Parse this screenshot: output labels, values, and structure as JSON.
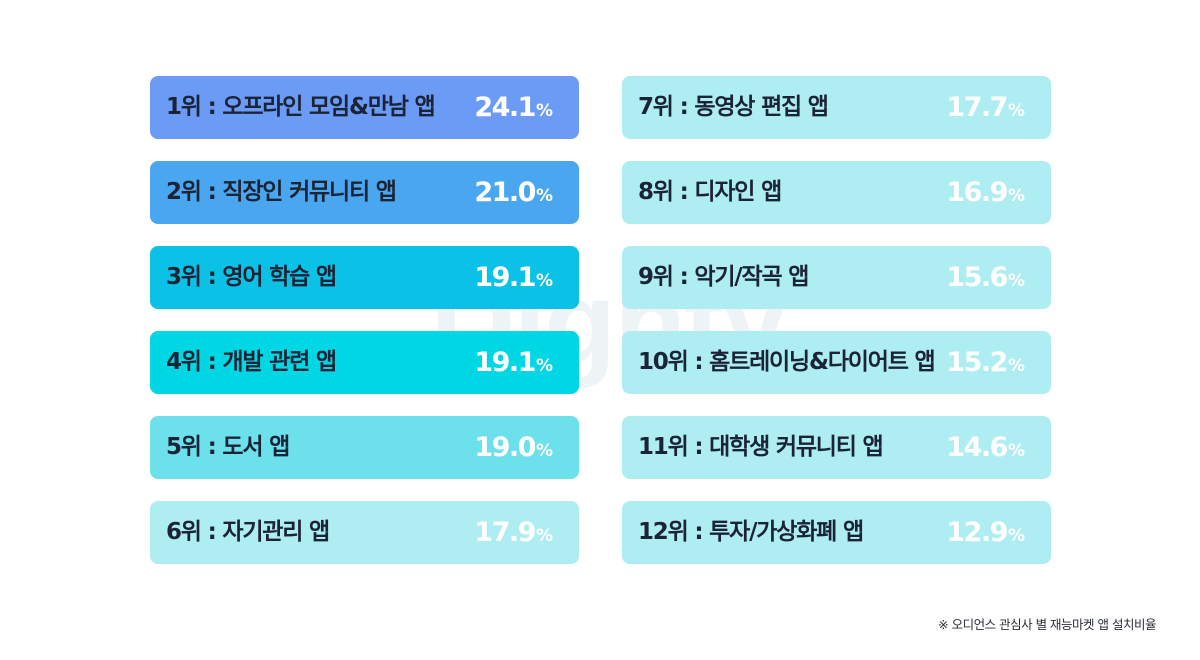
{
  "watermark": "Dighty",
  "footnote": "※ 오디언스 관심사 별 재능마켓 앱 설치비율",
  "chart_data": {
    "type": "table",
    "value_unit": "%",
    "items": [
      {
        "rank": "1위",
        "label": "1위 : 오프라인 모임&만남 앱",
        "value": "24.1",
        "color": "#6b9bf5"
      },
      {
        "rank": "2위",
        "label": "2위 : 직장인 커뮤니티 앱",
        "value": "21.0",
        "color": "#4aa7ef"
      },
      {
        "rank": "3위",
        "label": "3위 : 영어 학습 앱",
        "value": "19.1",
        "color": "#0bc2e6"
      },
      {
        "rank": "4위",
        "label": "4위 : 개발 관련 앱",
        "value": "19.1",
        "color": "#00d7e5"
      },
      {
        "rank": "5위",
        "label": "5위 : 도서 앱",
        "value": "19.0",
        "color": "#6ce1ec"
      },
      {
        "rank": "6위",
        "label": "6위 : 자기관리 앱",
        "value": "17.9",
        "color": "#aeedf2"
      },
      {
        "rank": "7위",
        "label": "7위 : 동영상 편집 앱",
        "value": "17.7",
        "color": "#aeedf2"
      },
      {
        "rank": "8위",
        "label": "8위 : 디자인 앱",
        "value": "16.9",
        "color": "#aeedf2"
      },
      {
        "rank": "9위",
        "label": "9위 : 악기/작곡 앱",
        "value": "15.6",
        "color": "#aeedf2"
      },
      {
        "rank": "10위",
        "label": "10위 : 홈트레이닝&다이어트 앱",
        "value": "15.2",
        "color": "#aeedf2"
      },
      {
        "rank": "11위",
        "label": "11위 : 대학생 커뮤니티 앱",
        "value": "14.6",
        "color": "#aeedf2"
      },
      {
        "rank": "12위",
        "label": "12위 : 투자/가상화폐 앱",
        "value": "12.9",
        "color": "#aeedf2"
      }
    ]
  }
}
